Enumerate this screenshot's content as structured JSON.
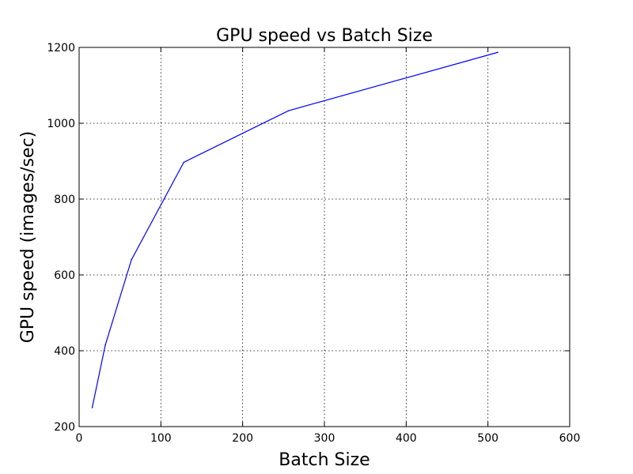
{
  "chart_data": {
    "type": "line",
    "title": "GPU speed vs Batch Size",
    "xlabel": "Batch Size",
    "ylabel": "GPU speed (images/sec)",
    "xlim": [
      0,
      600
    ],
    "ylim": [
      200,
      1200
    ],
    "xticks": [
      0,
      100,
      200,
      300,
      400,
      500,
      600
    ],
    "yticks": [
      200,
      400,
      600,
      800,
      1000,
      1200
    ],
    "grid": true,
    "series": [
      {
        "color": "#0000ff",
        "x": [
          16,
          32,
          64,
          128,
          256,
          512
        ],
        "y": [
          250,
          415,
          640,
          897,
          1033,
          1187
        ]
      }
    ]
  }
}
